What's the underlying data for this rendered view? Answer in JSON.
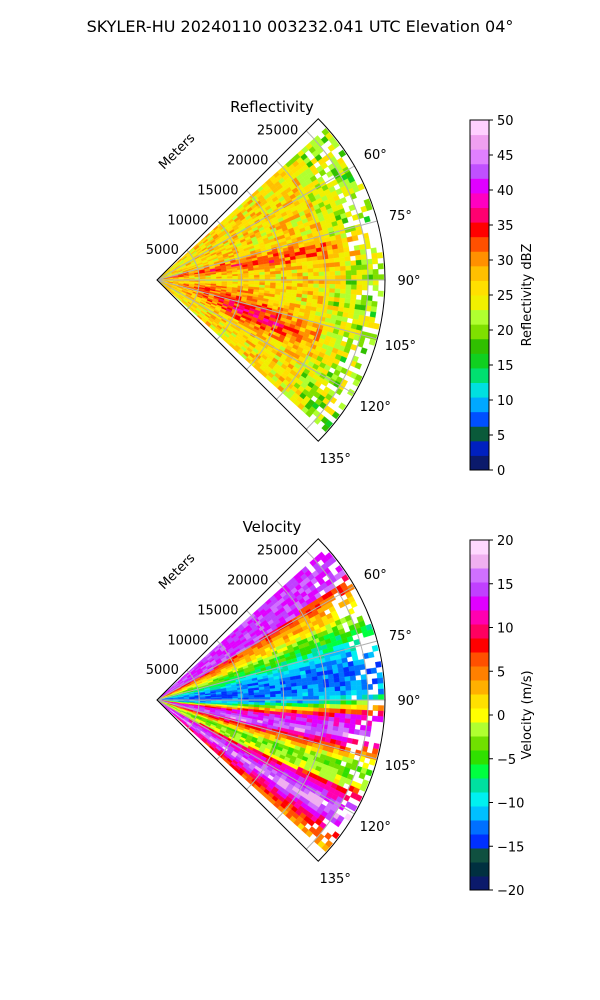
{
  "title": "SKYLER-HU  20240110  003232.041 UTC Elevation 04°",
  "chart_data": [
    {
      "type": "heatmap",
      "projection": "polar-sector",
      "title": "Reflectivity",
      "range_label": "Meters",
      "range_ticks": [
        5000,
        10000,
        15000,
        20000,
        25000
      ],
      "range_tick_labels": [
        "5000",
        "10000",
        "15000",
        "20000",
        "25000"
      ],
      "range_max": 27000,
      "azimuth_range": [
        45,
        135
      ],
      "azimuth_ticks": [
        60,
        75,
        90,
        105,
        120,
        135
      ],
      "azimuth_tick_labels": [
        "60°",
        "75°",
        "90°",
        "105°",
        "120°",
        "135°"
      ],
      "grid": true,
      "colorbar": {
        "label": "Reflectivity dBZ",
        "min": 0,
        "max": 50,
        "ticks": [
          0,
          5,
          10,
          15,
          20,
          25,
          30,
          35,
          40,
          45,
          50
        ],
        "tick_labels": [
          "0",
          "5",
          "10",
          "15",
          "20",
          "25",
          "30",
          "35",
          "40",
          "45",
          "50"
        ],
        "colors": [
          "#0b1a6b",
          "#0020c0",
          "#0a5a3a",
          "#0050ff",
          "#00a8ff",
          "#00e0e0",
          "#00e070",
          "#10d020",
          "#30c000",
          "#7fe000",
          "#b0ff30",
          "#f0f000",
          "#ffe000",
          "#ffc000",
          "#ff9000",
          "#ff5000",
          "#ff0000",
          "#ff0070",
          "#ff00c0",
          "#e000ff",
          "#c050ff",
          "#e080ff",
          "#f0a0f0",
          "#ffd0ff"
        ]
      },
      "field_description": "mostly 20–33 dBZ, with 34–38 dBZ bands along ~80° and ~105–115°, noisy sparse edges beyond 20 km"
    },
    {
      "type": "heatmap",
      "projection": "polar-sector",
      "title": "Velocity",
      "range_label": "Meters",
      "range_ticks": [
        5000,
        10000,
        15000,
        20000,
        25000
      ],
      "range_tick_labels": [
        "5000",
        "10000",
        "15000",
        "20000",
        "25000"
      ],
      "range_max": 27000,
      "azimuth_range": [
        45,
        135
      ],
      "azimuth_ticks": [
        60,
        75,
        90,
        105,
        120,
        135
      ],
      "azimuth_tick_labels": [
        "60°",
        "75°",
        "90°",
        "105°",
        "120°",
        "135°"
      ],
      "grid": true,
      "colorbar": {
        "label": "Velocity (m/s)",
        "min": -20,
        "max": 20,
        "ticks": [
          -20,
          -15,
          -10,
          -5,
          0,
          5,
          10,
          15,
          20
        ],
        "tick_labels": [
          "−20",
          "−15",
          "−10",
          "−5",
          "0",
          "5",
          "10",
          "15",
          "20"
        ],
        "colors": [
          "#0b1a6b",
          "#003040",
          "#105040",
          "#0030ff",
          "#0070ff",
          "#00c0ff",
          "#00f0f0",
          "#00e0a0",
          "#00ff40",
          "#30e000",
          "#70e000",
          "#b0ff30",
          "#ffff00",
          "#ffe000",
          "#ffb000",
          "#ff8000",
          "#ff5000",
          "#ff0000",
          "#ff0060",
          "#ff00b0",
          "#e000ff",
          "#c040ff",
          "#d070ff",
          "#f0b0f0",
          "#ffd8ff"
        ]
      },
      "field_description": "positive (red/magenta) toward ~60°, yellow/green near 70°, cyan/blue band near 85–95°, red/magenta band near 100°, yellow/green band, magenta/red band near 120–130°"
    }
  ]
}
